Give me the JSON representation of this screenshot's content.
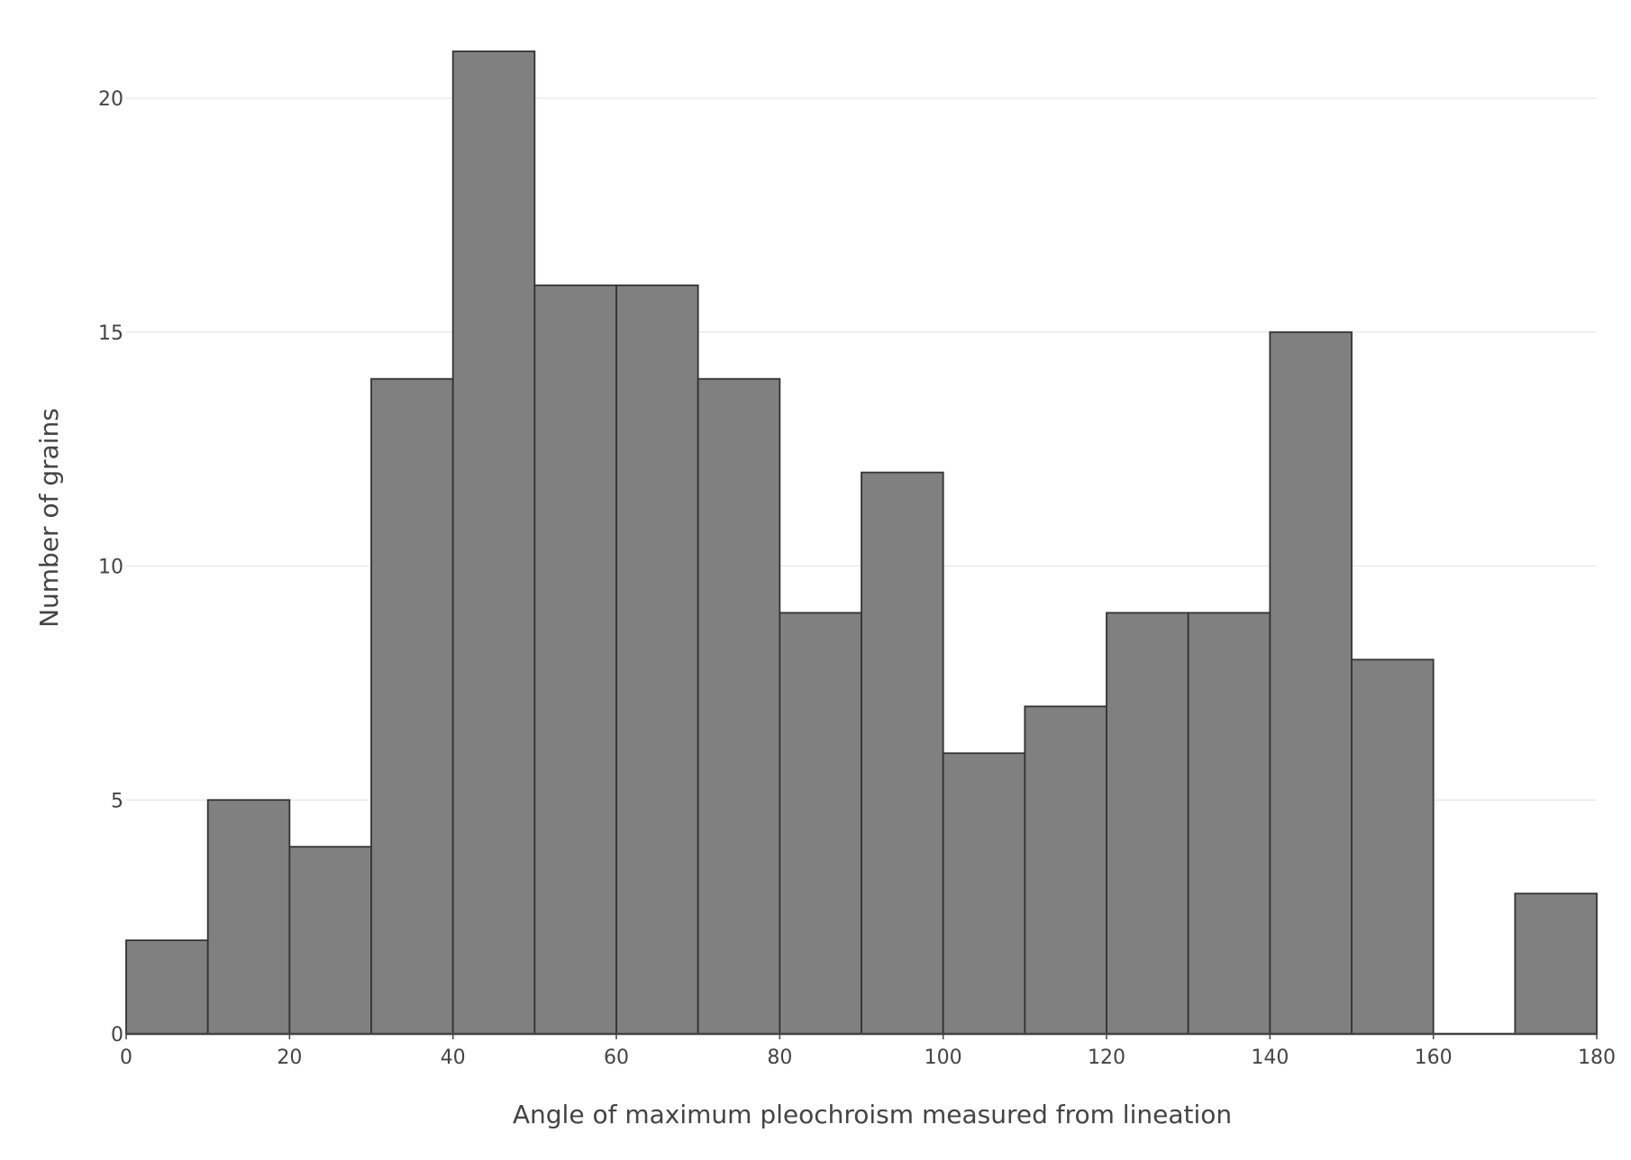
{
  "chart_data": {
    "type": "bar",
    "subtype": "histogram",
    "title": "",
    "xlabel": "Angle of maximum pleochroism measured from lineation",
    "ylabel": "Number of grains",
    "bin_edges": [
      0,
      10,
      20,
      30,
      40,
      50,
      60,
      70,
      80,
      90,
      100,
      110,
      120,
      130,
      140,
      150,
      160,
      170,
      180
    ],
    "values": [
      2,
      5,
      4,
      14,
      21,
      16,
      16,
      14,
      9,
      12,
      6,
      7,
      9,
      9,
      15,
      8,
      0,
      3
    ],
    "xlim": [
      0,
      180
    ],
    "ylim": [
      0,
      21.5
    ],
    "x_ticks": [
      0,
      20,
      40,
      60,
      80,
      100,
      120,
      140,
      160,
      180
    ],
    "x_tick_labels": [
      "0",
      "20",
      "40",
      "60",
      "80",
      "100",
      "120",
      "140",
      "160",
      "180"
    ],
    "y_ticks": [
      0,
      5,
      10,
      15,
      20
    ],
    "y_tick_labels": [
      "0",
      "5",
      "10",
      "15",
      "20"
    ],
    "grid": "horizontal",
    "legend": "none",
    "colors": {
      "bar_fill": "#808080",
      "bar_edge": "#333333",
      "grid": "#e6e6e6",
      "axis": "#444444",
      "text": "#444444"
    }
  }
}
